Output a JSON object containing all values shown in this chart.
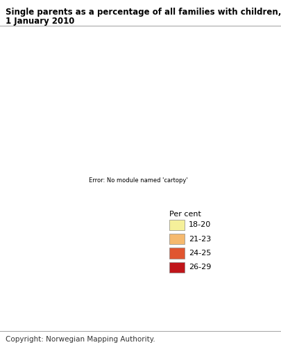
{
  "title_line1": "Single parents as a percentage of all families with children, by county.",
  "title_line2": "1 January 2010",
  "legend_title": "Per cent",
  "legend_entries": [
    {
      "label": "18-20",
      "color": "#f5f09a"
    },
    {
      "label": "21-23",
      "color": "#f5b96e"
    },
    {
      "label": "24-25",
      "color": "#e05530"
    },
    {
      "label": "26-29",
      "color": "#c0151a"
    }
  ],
  "county_colors": {
    "Ostfold": "#f5b96e",
    "Akershus": "#f5b96e",
    "Oslo": "#e05530",
    "Hedmark": "#f5b96e",
    "Oppland": "#f5f09a",
    "Buskerud": "#f5b96e",
    "Vestfold": "#f5b96e",
    "Telemark": "#f5b96e",
    "Aust-Agder": "#e05530",
    "Vest-Agder": "#e05530",
    "Rogaland": "#f5f09a",
    "Hordaland": "#f5f09a",
    "Sogn og Fjordane": "#f5f09a",
    "More og Romsdal": "#f5b96e",
    "Sor-Trondelag": "#f5b96e",
    "Nord-Trondelag": "#f5b96e",
    "Nordland": "#e05530",
    "Troms": "#e05530",
    "Finnmark": "#c0151a"
  },
  "extent": [
    4.0,
    31.5,
    57.5,
    71.8
  ],
  "background_color": "#ffffff",
  "border_color": "#cccccc",
  "title_fontsize": 8.5,
  "legend_fontsize": 8,
  "copyright_fontsize": 7.5,
  "copyright": "Copyright: Norwegian Mapping Authority."
}
